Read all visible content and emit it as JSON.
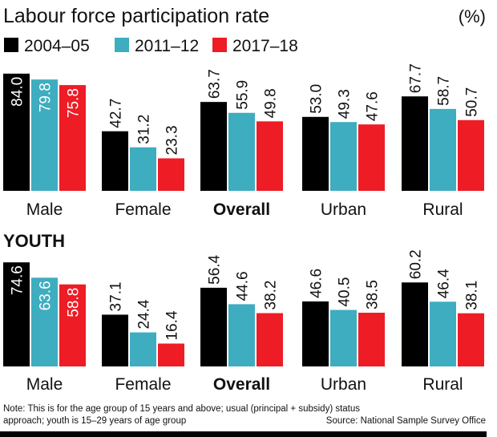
{
  "chart_data": [
    {
      "type": "bar",
      "title": "Labour force participation rate",
      "unit": "(%)",
      "categories": [
        "Male",
        "Female",
        "Overall",
        "Urban",
        "Rural"
      ],
      "series": [
        {
          "name": "2004-05",
          "color": "#000000",
          "values": [
            84.0,
            42.7,
            63.7,
            53.0,
            67.7
          ]
        },
        {
          "name": "2011-12",
          "color": "#3eadbf",
          "values": [
            79.8,
            31.2,
            55.9,
            49.3,
            58.7
          ]
        },
        {
          "name": "2017-18",
          "color": "#ee1c25",
          "values": [
            75.8,
            23.3,
            49.8,
            47.6,
            50.7
          ]
        }
      ],
      "ylim": [
        0,
        90
      ]
    },
    {
      "type": "bar",
      "title": "YOUTH",
      "categories": [
        "Male",
        "Female",
        "Overall",
        "Urban",
        "Rural"
      ],
      "series": [
        {
          "name": "2004-05",
          "color": "#000000",
          "values": [
            74.6,
            37.1,
            56.4,
            46.6,
            60.2
          ]
        },
        {
          "name": "2011-12",
          "color": "#3eadbf",
          "values": [
            63.6,
            24.4,
            44.6,
            40.5,
            46.4
          ]
        },
        {
          "name": "2017-18",
          "color": "#ee1c25",
          "values": [
            58.8,
            16.4,
            38.2,
            38.5,
            38.1
          ]
        }
      ],
      "ylim": [
        0,
        90
      ]
    }
  ],
  "legend": [
    "2004–05",
    "2011–12",
    "2017–18"
  ],
  "bold_category": "Overall",
  "note_line1": "Note: This is for the age group of 15 years and above; usual (principal + subsidy) status",
  "note_line2": "approach; youth is 15–29 years of age group",
  "source": "Source: National Sample Survey Office"
}
